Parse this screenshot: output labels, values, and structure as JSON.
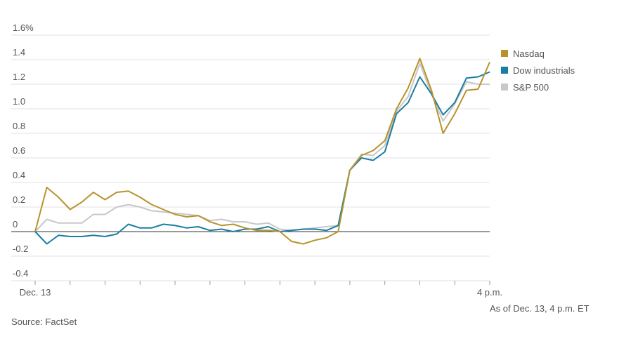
{
  "chart_data": {
    "type": "line",
    "categories": [
      "Dec. 13",
      null,
      null,
      null,
      null,
      null,
      null,
      null,
      null,
      null,
      null,
      null,
      null,
      null,
      null,
      null,
      null,
      null,
      null,
      null,
      null,
      null,
      null,
      null,
      null,
      null,
      null,
      null,
      null,
      null,
      null,
      null,
      null,
      null,
      null,
      null,
      null,
      null,
      null,
      "4 p.m."
    ],
    "series": [
      {
        "name": "Nasdaq",
        "color": "#b8932c",
        "values": [
          0,
          0.36,
          0.28,
          0.18,
          0.24,
          0.32,
          0.26,
          0.32,
          0.33,
          0.28,
          0.22,
          0.18,
          0.14,
          0.12,
          0.13,
          0.08,
          0.05,
          0.06,
          0.03,
          0.01,
          0.01,
          0,
          -0.08,
          -0.1,
          -0.07,
          -0.05,
          0,
          0.5,
          0.62,
          0.66,
          0.74,
          1.0,
          1.17,
          1.41,
          1.15,
          0.8,
          0.96,
          1.15,
          1.16,
          1.38
        ]
      },
      {
        "name": "Dow industrials",
        "color": "#1a7ea0",
        "values": [
          0,
          -0.1,
          -0.03,
          -0.04,
          -0.04,
          -0.03,
          -0.04,
          -0.02,
          0.06,
          0.03,
          0.03,
          0.06,
          0.05,
          0.03,
          0.04,
          0.01,
          0.02,
          0,
          0.02,
          0.02,
          0.04,
          0,
          0.01,
          0.02,
          0.02,
          0.01,
          0.05,
          0.5,
          0.6,
          0.58,
          0.65,
          0.96,
          1.05,
          1.26,
          1.12,
          0.95,
          1.05,
          1.25,
          1.26,
          1.3
        ]
      },
      {
        "name": "S&P 500",
        "color": "#c8c8cc",
        "values": [
          0,
          0.1,
          0.07,
          0.07,
          0.07,
          0.14,
          0.14,
          0.2,
          0.22,
          0.2,
          0.17,
          0.16,
          0.15,
          0.14,
          0.13,
          0.09,
          0.1,
          0.08,
          0.08,
          0.06,
          0.07,
          0.02,
          0.01,
          0.02,
          0.03,
          0.04,
          0.05,
          0.5,
          0.63,
          0.62,
          0.7,
          0.98,
          1.1,
          1.37,
          1.12,
          0.9,
          1.04,
          1.22,
          1.2,
          1.2
        ]
      }
    ],
    "ylim": [
      -0.4,
      1.6
    ],
    "yticks": [
      {
        "value": 1.6,
        "label": "1.6%"
      },
      1.4,
      1.2,
      {
        "value": 1,
        "label": "1.0"
      },
      0.8,
      0.6,
      0.4,
      0.2,
      0,
      -0.2,
      -0.4
    ],
    "grid": true,
    "legend": "right",
    "note": "As of Dec. 13, 4 p.m. ET",
    "source": "Source: FactSet"
  }
}
